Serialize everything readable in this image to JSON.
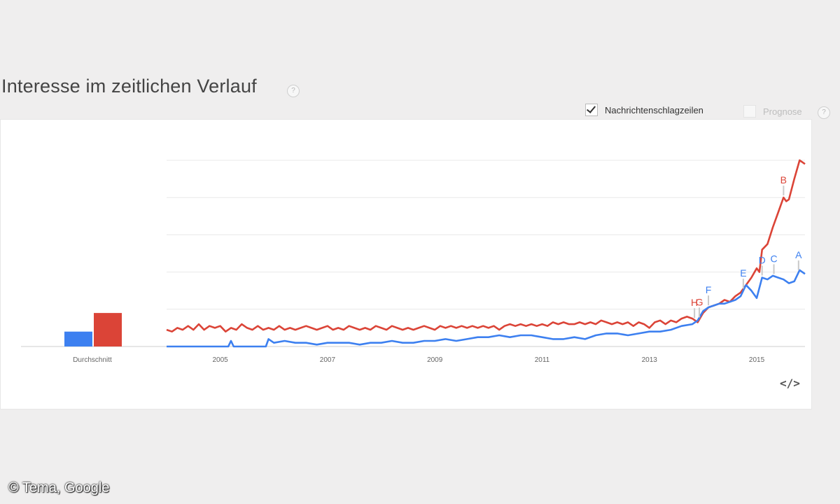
{
  "title": "Interesse im zeitlichen Verlauf",
  "help_icon_label": "?",
  "options": {
    "headlines_label": "Nachrichtenschlagzeilen",
    "headlines_checked": true,
    "forecast_label": "Prognose",
    "forecast_checked": false
  },
  "embed_icon": "</>",
  "credit": "© Tema, Google",
  "colors": {
    "blue": "#3d80f0",
    "red": "#db4437"
  },
  "chart_data": {
    "type": "line",
    "average_label": "Durchschnitt",
    "averages": [
      {
        "color": "#3d80f0",
        "value": 8
      },
      {
        "color": "#db4437",
        "value": 18
      }
    ],
    "x_ticks": [
      {
        "label": "2005",
        "x": 2005.0
      },
      {
        "label": "2007",
        "x": 2007.0
      },
      {
        "label": "2009",
        "x": 2009.0
      },
      {
        "label": "2011",
        "x": 2011.0
      },
      {
        "label": "2013",
        "x": 2013.0
      },
      {
        "label": "2015",
        "x": 2015.0
      }
    ],
    "xlim": [
      2004.0,
      2015.9
    ],
    "ylim": [
      0,
      100
    ],
    "grid": true,
    "series": [
      {
        "color": "#db4437",
        "points": [
          [
            2004.0,
            9
          ],
          [
            2004.1,
            8
          ],
          [
            2004.2,
            10
          ],
          [
            2004.3,
            9
          ],
          [
            2004.4,
            11
          ],
          [
            2004.5,
            9
          ],
          [
            2004.6,
            12
          ],
          [
            2004.7,
            9
          ],
          [
            2004.8,
            11
          ],
          [
            2004.9,
            10
          ],
          [
            2005.0,
            11
          ],
          [
            2005.1,
            8
          ],
          [
            2005.2,
            10
          ],
          [
            2005.3,
            9
          ],
          [
            2005.4,
            12
          ],
          [
            2005.5,
            10
          ],
          [
            2005.6,
            9
          ],
          [
            2005.7,
            11
          ],
          [
            2005.8,
            9
          ],
          [
            2005.9,
            10
          ],
          [
            2006.0,
            9
          ],
          [
            2006.1,
            11
          ],
          [
            2006.2,
            9
          ],
          [
            2006.3,
            10
          ],
          [
            2006.4,
            9
          ],
          [
            2006.5,
            10
          ],
          [
            2006.6,
            11
          ],
          [
            2006.7,
            10
          ],
          [
            2006.8,
            9
          ],
          [
            2006.9,
            10
          ],
          [
            2007.0,
            11
          ],
          [
            2007.1,
            9
          ],
          [
            2007.2,
            10
          ],
          [
            2007.3,
            9
          ],
          [
            2007.4,
            11
          ],
          [
            2007.5,
            10
          ],
          [
            2007.6,
            9
          ],
          [
            2007.7,
            10
          ],
          [
            2007.8,
            9
          ],
          [
            2007.9,
            11
          ],
          [
            2008.0,
            10
          ],
          [
            2008.1,
            9
          ],
          [
            2008.2,
            11
          ],
          [
            2008.3,
            10
          ],
          [
            2008.4,
            9
          ],
          [
            2008.5,
            10
          ],
          [
            2008.6,
            9
          ],
          [
            2008.7,
            10
          ],
          [
            2008.8,
            11
          ],
          [
            2008.9,
            10
          ],
          [
            2009.0,
            9
          ],
          [
            2009.1,
            11
          ],
          [
            2009.2,
            10
          ],
          [
            2009.3,
            11
          ],
          [
            2009.4,
            10
          ],
          [
            2009.5,
            11
          ],
          [
            2009.6,
            10
          ],
          [
            2009.7,
            11
          ],
          [
            2009.8,
            10
          ],
          [
            2009.9,
            11
          ],
          [
            2010.0,
            10
          ],
          [
            2010.1,
            11
          ],
          [
            2010.2,
            9
          ],
          [
            2010.3,
            11
          ],
          [
            2010.4,
            12
          ],
          [
            2010.5,
            11
          ],
          [
            2010.6,
            12
          ],
          [
            2010.7,
            11
          ],
          [
            2010.8,
            12
          ],
          [
            2010.9,
            11
          ],
          [
            2011.0,
            12
          ],
          [
            2011.1,
            11
          ],
          [
            2011.2,
            13
          ],
          [
            2011.3,
            12
          ],
          [
            2011.4,
            13
          ],
          [
            2011.5,
            12
          ],
          [
            2011.6,
            12
          ],
          [
            2011.7,
            13
          ],
          [
            2011.8,
            12
          ],
          [
            2011.9,
            13
          ],
          [
            2012.0,
            12
          ],
          [
            2012.1,
            14
          ],
          [
            2012.2,
            13
          ],
          [
            2012.3,
            12
          ],
          [
            2012.4,
            13
          ],
          [
            2012.5,
            12
          ],
          [
            2012.6,
            13
          ],
          [
            2012.7,
            11
          ],
          [
            2012.8,
            13
          ],
          [
            2012.9,
            12
          ],
          [
            2013.0,
            10
          ],
          [
            2013.1,
            13
          ],
          [
            2013.2,
            14
          ],
          [
            2013.3,
            12
          ],
          [
            2013.4,
            14
          ],
          [
            2013.5,
            13
          ],
          [
            2013.6,
            15
          ],
          [
            2013.7,
            16
          ],
          [
            2013.8,
            15
          ],
          [
            2013.9,
            13
          ],
          [
            2014.0,
            18
          ],
          [
            2014.1,
            21
          ],
          [
            2014.2,
            22
          ],
          [
            2014.3,
            23
          ],
          [
            2014.4,
            25
          ],
          [
            2014.5,
            24
          ],
          [
            2014.6,
            27
          ],
          [
            2014.7,
            29
          ],
          [
            2014.8,
            33
          ],
          [
            2014.9,
            37
          ],
          [
            2015.0,
            42
          ],
          [
            2015.05,
            40
          ],
          [
            2015.1,
            52
          ],
          [
            2015.2,
            55
          ],
          [
            2015.3,
            64
          ],
          [
            2015.4,
            72
          ],
          [
            2015.5,
            80
          ],
          [
            2015.55,
            78
          ],
          [
            2015.6,
            79
          ],
          [
            2015.7,
            90
          ],
          [
            2015.8,
            100
          ],
          [
            2015.9,
            98
          ]
        ]
      },
      {
        "color": "#3d80f0",
        "points": [
          [
            2004.0,
            0
          ],
          [
            2004.5,
            0
          ],
          [
            2005.0,
            0
          ],
          [
            2005.15,
            0
          ],
          [
            2005.2,
            3
          ],
          [
            2005.25,
            0
          ],
          [
            2005.5,
            0
          ],
          [
            2005.85,
            0
          ],
          [
            2005.9,
            4
          ],
          [
            2006.0,
            2
          ],
          [
            2006.2,
            3
          ],
          [
            2006.4,
            2
          ],
          [
            2006.6,
            2
          ],
          [
            2006.8,
            1
          ],
          [
            2007.0,
            2
          ],
          [
            2007.2,
            2
          ],
          [
            2007.4,
            2
          ],
          [
            2007.6,
            1
          ],
          [
            2007.8,
            2
          ],
          [
            2008.0,
            2
          ],
          [
            2008.2,
            3
          ],
          [
            2008.4,
            2
          ],
          [
            2008.6,
            2
          ],
          [
            2008.8,
            3
          ],
          [
            2009.0,
            3
          ],
          [
            2009.2,
            4
          ],
          [
            2009.4,
            3
          ],
          [
            2009.6,
            4
          ],
          [
            2009.8,
            5
          ],
          [
            2010.0,
            5
          ],
          [
            2010.2,
            6
          ],
          [
            2010.4,
            5
          ],
          [
            2010.6,
            6
          ],
          [
            2010.8,
            6
          ],
          [
            2011.0,
            5
          ],
          [
            2011.2,
            4
          ],
          [
            2011.4,
            4
          ],
          [
            2011.6,
            5
          ],
          [
            2011.8,
            4
          ],
          [
            2012.0,
            6
          ],
          [
            2012.2,
            7
          ],
          [
            2012.4,
            7
          ],
          [
            2012.6,
            6
          ],
          [
            2012.8,
            7
          ],
          [
            2013.0,
            8
          ],
          [
            2013.2,
            8
          ],
          [
            2013.4,
            9
          ],
          [
            2013.6,
            11
          ],
          [
            2013.8,
            12
          ],
          [
            2013.9,
            14
          ],
          [
            2014.0,
            19
          ],
          [
            2014.1,
            21
          ],
          [
            2014.2,
            22
          ],
          [
            2014.3,
            23
          ],
          [
            2014.4,
            23
          ],
          [
            2014.5,
            24
          ],
          [
            2014.6,
            25
          ],
          [
            2014.7,
            27
          ],
          [
            2014.8,
            33
          ],
          [
            2014.9,
            30
          ],
          [
            2015.0,
            26
          ],
          [
            2015.1,
            37
          ],
          [
            2015.2,
            36
          ],
          [
            2015.3,
            38
          ],
          [
            2015.4,
            37
          ],
          [
            2015.5,
            36
          ],
          [
            2015.6,
            34
          ],
          [
            2015.7,
            35
          ],
          [
            2015.8,
            41
          ],
          [
            2015.9,
            39
          ]
        ]
      }
    ],
    "annotations": [
      {
        "label": "A",
        "x": 2015.78,
        "color": "#3d80f0",
        "series": 1
      },
      {
        "label": "B",
        "x": 2015.5,
        "color": "#db4437",
        "series": 0
      },
      {
        "label": "C",
        "x": 2015.32,
        "color": "#3d80f0",
        "series": 1
      },
      {
        "label": "D",
        "x": 2015.1,
        "color": "#3d80f0",
        "series": 1
      },
      {
        "label": "E",
        "x": 2014.75,
        "color": "#3d80f0",
        "series": 1
      },
      {
        "label": "F",
        "x": 2014.1,
        "color": "#3d80f0",
        "series": 1
      },
      {
        "label": "G",
        "x": 2013.93,
        "color": "#db4437",
        "series": 0
      },
      {
        "label": "H",
        "x": 2013.84,
        "color": "#db4437",
        "series": 0
      }
    ]
  }
}
